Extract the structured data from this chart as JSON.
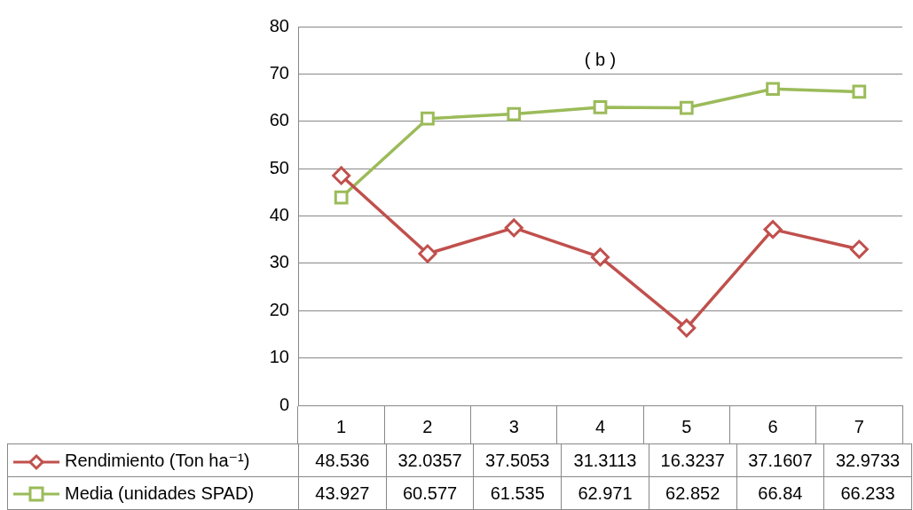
{
  "chart_data": {
    "type": "line",
    "title": "( b )",
    "categories": [
      "1",
      "2",
      "3",
      "4",
      "5",
      "6",
      "7"
    ],
    "series": [
      {
        "name": "Rendimiento (Ton ha⁻¹)",
        "color": "#c0504d",
        "marker": "diamond",
        "values": [
          48.536,
          32.0357,
          37.5053,
          31.3113,
          16.3237,
          37.1607,
          32.9733
        ]
      },
      {
        "name": "Media (unidades SPAD)",
        "color": "#9bbb59",
        "marker": "square",
        "values": [
          43.927,
          60.577,
          61.535,
          62.971,
          62.852,
          66.84,
          66.233
        ]
      }
    ],
    "ylim": [
      0,
      80
    ],
    "yticks": [
      0,
      10,
      20,
      30,
      40,
      50,
      60,
      70,
      80
    ],
    "grid": "y",
    "legend": "bottom",
    "data_labels": true
  }
}
